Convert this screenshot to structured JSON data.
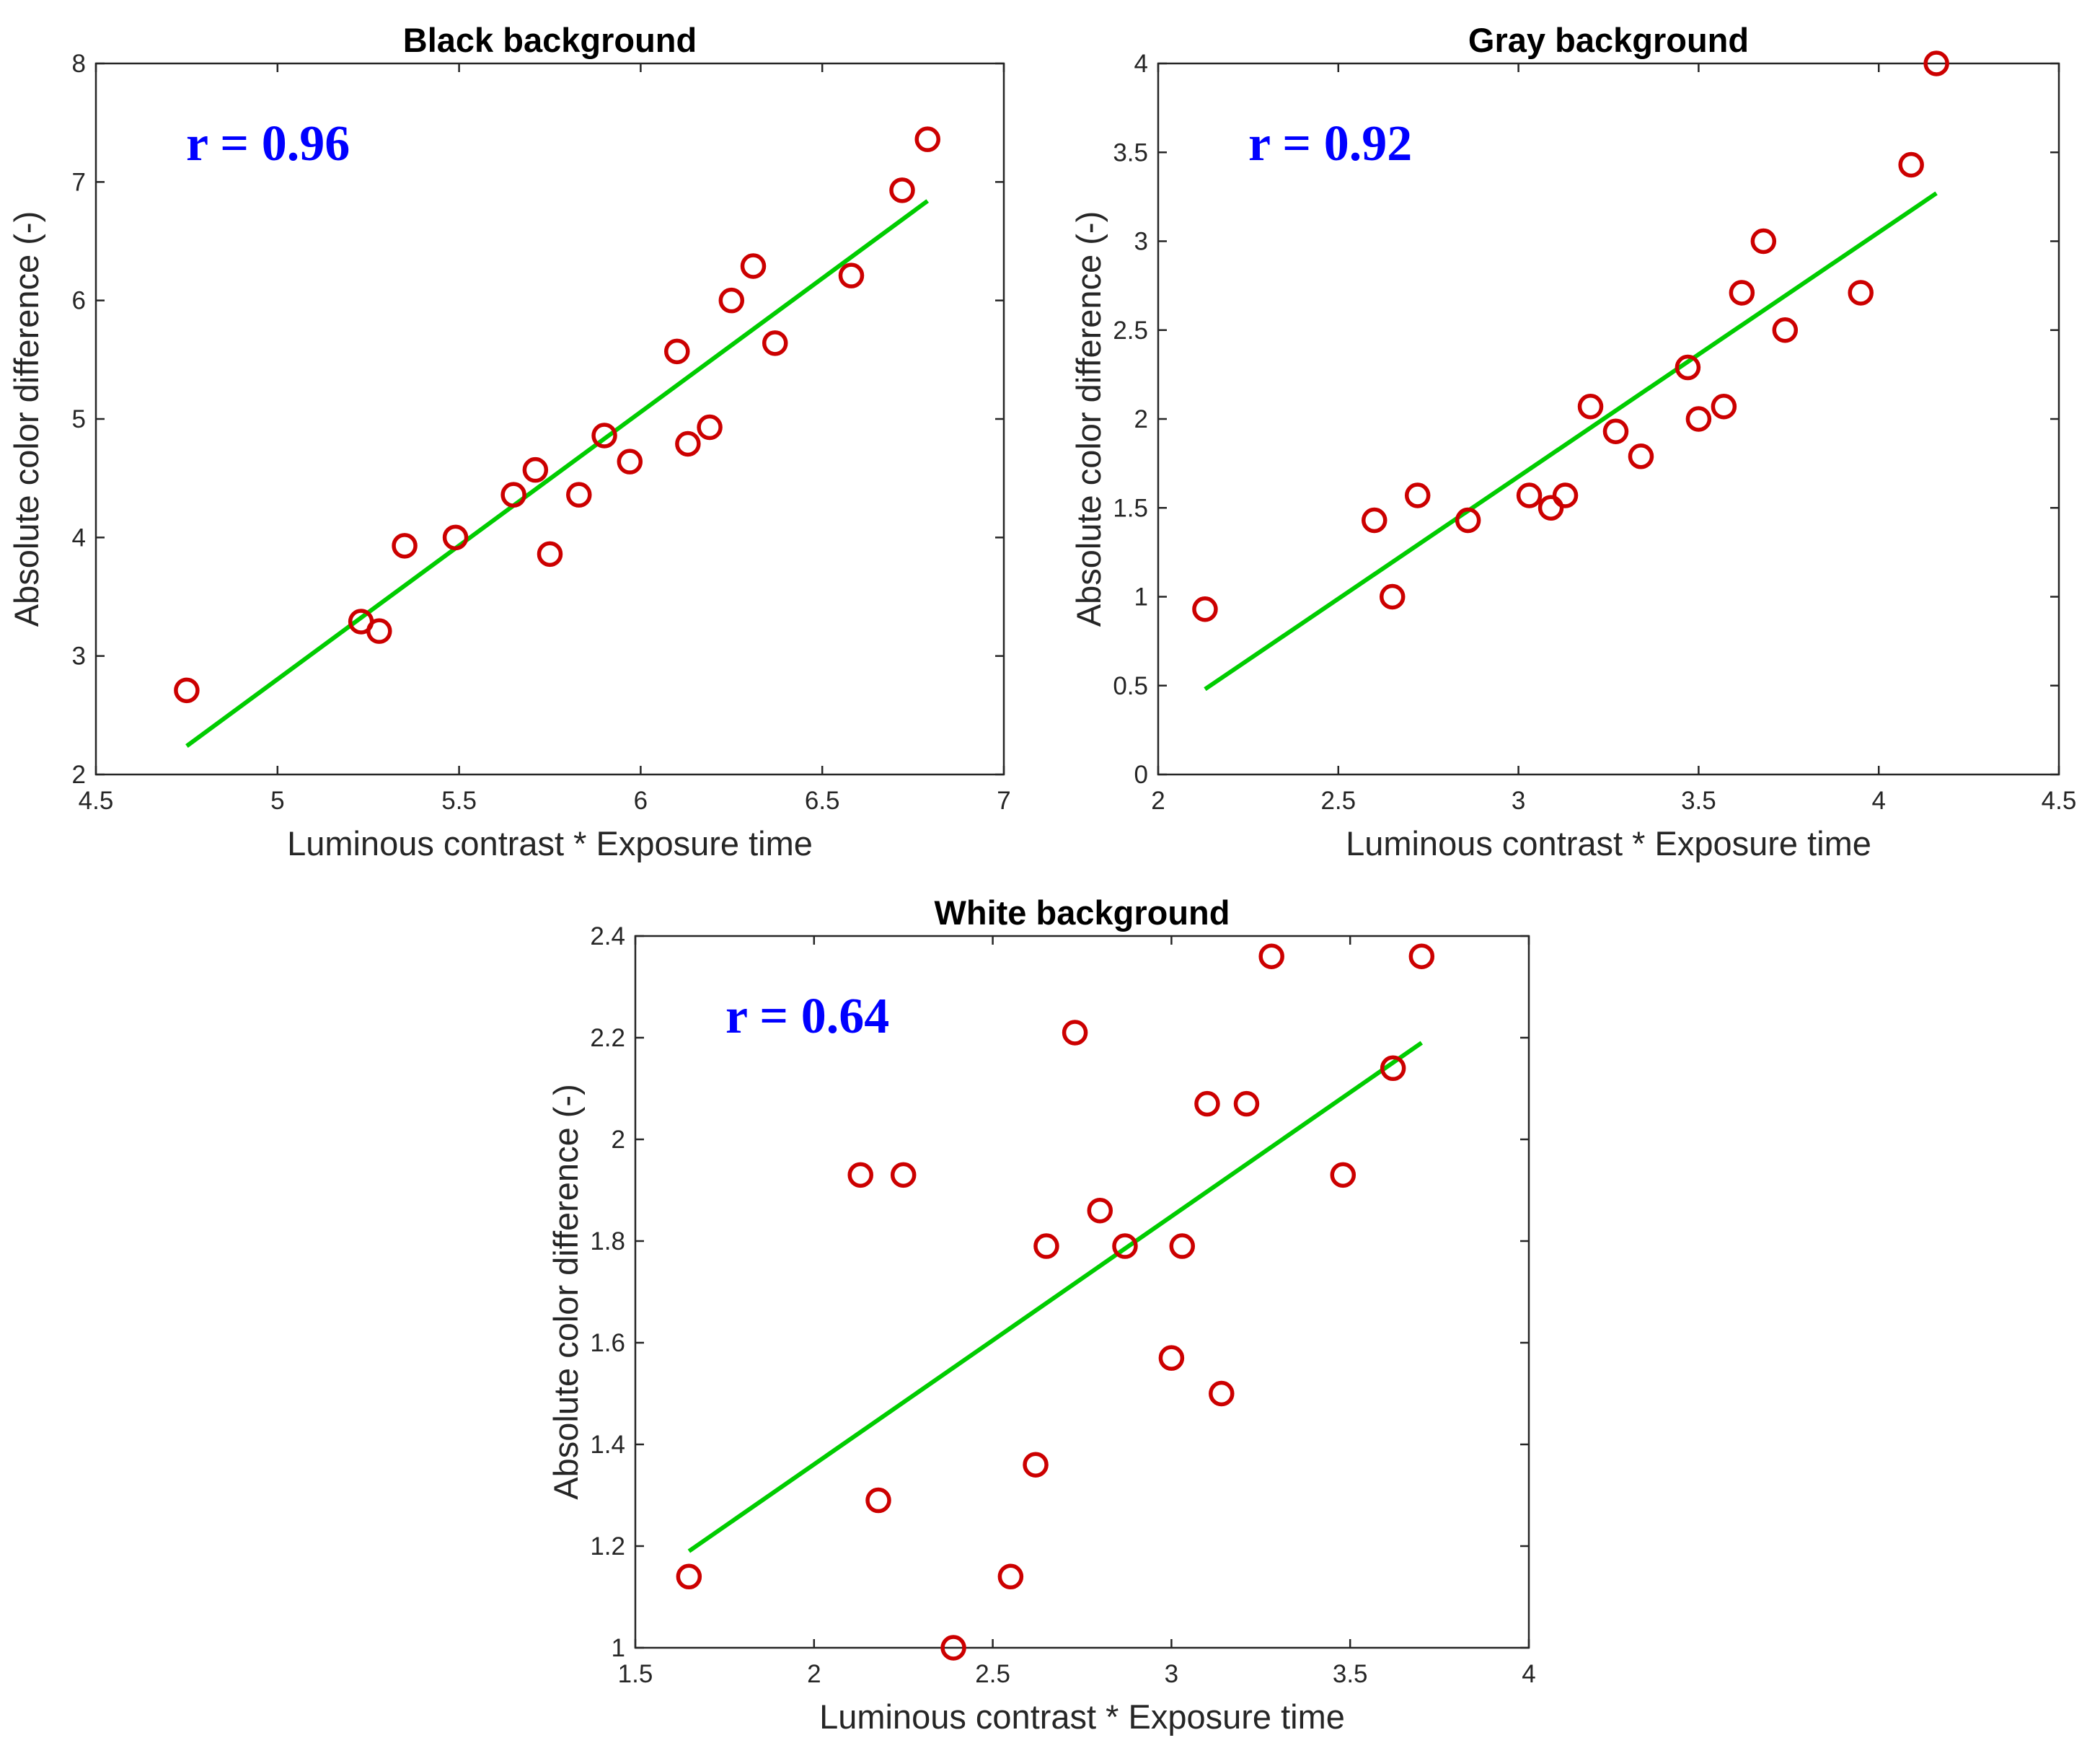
{
  "colors": {
    "marker": "#cc0000",
    "fit_line": "#00cc00",
    "r_text": "#0000ff",
    "axes": "#262626"
  },
  "chart_data": [
    {
      "id": "black",
      "type": "scatter",
      "title": "Black background",
      "xlabel": "Luminous contrast * Exposure time",
      "ylabel": "Absolute color difference (-)",
      "annotation": "r = 0.96",
      "xlim": [
        4.5,
        7
      ],
      "ylim": [
        2,
        8
      ],
      "xticks": [
        4.5,
        5,
        5.5,
        6,
        6.5,
        7
      ],
      "xtick_labels": [
        "4.5",
        "5",
        "5.5",
        "6",
        "6.5",
        "7"
      ],
      "yticks": [
        2,
        3,
        4,
        5,
        6,
        7,
        8
      ],
      "ytick_labels": [
        "2",
        "3",
        "4",
        "5",
        "6",
        "7",
        "8"
      ],
      "points": [
        [
          4.75,
          2.71
        ],
        [
          5.23,
          3.29
        ],
        [
          5.28,
          3.21
        ],
        [
          5.35,
          3.93
        ],
        [
          5.49,
          4.0
        ],
        [
          5.65,
          4.36
        ],
        [
          5.71,
          4.57
        ],
        [
          5.75,
          3.86
        ],
        [
          5.83,
          4.36
        ],
        [
          5.9,
          4.86
        ],
        [
          5.97,
          4.64
        ],
        [
          6.1,
          5.57
        ],
        [
          6.13,
          4.79
        ],
        [
          6.19,
          4.93
        ],
        [
          6.25,
          6.0
        ],
        [
          6.31,
          6.29
        ],
        [
          6.37,
          5.64
        ],
        [
          6.58,
          6.21
        ],
        [
          6.72,
          6.93
        ],
        [
          6.79,
          7.36
        ]
      ],
      "fit": [
        [
          4.75,
          2.24
        ],
        [
          6.79,
          6.84
        ]
      ]
    },
    {
      "id": "gray",
      "type": "scatter",
      "title": "Gray background",
      "xlabel": "Luminous contrast * Exposure time",
      "ylabel": "Absolute color difference (-)",
      "annotation": "r = 0.92",
      "xlim": [
        2,
        4.5
      ],
      "ylim": [
        0,
        4
      ],
      "xticks": [
        2,
        2.5,
        3,
        3.5,
        4,
        4.5
      ],
      "xtick_labels": [
        "2",
        "2.5",
        "3",
        "3.5",
        "4",
        "4.5"
      ],
      "yticks": [
        0,
        0.5,
        1,
        1.5,
        2,
        2.5,
        3,
        3.5,
        4
      ],
      "ytick_labels": [
        "0",
        "0.5",
        "1",
        "1.5",
        "2",
        "2.5",
        "3",
        "3.5",
        "4"
      ],
      "points": [
        [
          2.13,
          0.93
        ],
        [
          2.6,
          1.43
        ],
        [
          2.65,
          1.0
        ],
        [
          2.72,
          1.57
        ],
        [
          2.86,
          1.43
        ],
        [
          3.03,
          1.57
        ],
        [
          3.09,
          1.5
        ],
        [
          3.13,
          1.57
        ],
        [
          3.2,
          2.07
        ],
        [
          3.27,
          1.93
        ],
        [
          3.34,
          1.79
        ],
        [
          3.47,
          2.29
        ],
        [
          3.5,
          2.0
        ],
        [
          3.57,
          2.07
        ],
        [
          3.62,
          2.71
        ],
        [
          3.68,
          3.0
        ],
        [
          3.74,
          2.5
        ],
        [
          3.95,
          2.71
        ],
        [
          4.09,
          3.43
        ],
        [
          4.16,
          4.0
        ]
      ],
      "fit": [
        [
          2.13,
          0.48
        ],
        [
          4.16,
          3.27
        ]
      ]
    },
    {
      "id": "white",
      "type": "scatter",
      "title": "White background",
      "xlabel": "Luminous contrast * Exposure time",
      "ylabel": "Absolute color difference (-)",
      "annotation": "r = 0.64",
      "xlim": [
        1.5,
        4
      ],
      "ylim": [
        1,
        2.4
      ],
      "xticks": [
        1.5,
        2,
        2.5,
        3,
        3.5,
        4
      ],
      "xtick_labels": [
        "1.5",
        "2",
        "2.5",
        "3",
        "3.5",
        "4"
      ],
      "yticks": [
        1,
        1.2,
        1.4,
        1.6,
        1.8,
        2,
        2.2,
        2.4
      ],
      "ytick_labels": [
        "1",
        "1.2",
        "1.4",
        "1.6",
        "1.8",
        "2",
        "2.2",
        "2.4"
      ],
      "points": [
        [
          1.65,
          1.14
        ],
        [
          2.13,
          1.93
        ],
        [
          2.18,
          1.29
        ],
        [
          2.25,
          1.93
        ],
        [
          2.39,
          1.0
        ],
        [
          2.55,
          1.14
        ],
        [
          2.62,
          1.36
        ],
        [
          2.65,
          1.79
        ],
        [
          2.73,
          2.21
        ],
        [
          2.8,
          1.86
        ],
        [
          2.87,
          1.79
        ],
        [
          3.0,
          1.57
        ],
        [
          3.03,
          1.79
        ],
        [
          3.1,
          2.07
        ],
        [
          3.14,
          1.5
        ],
        [
          3.21,
          2.07
        ],
        [
          3.28,
          2.36
        ],
        [
          3.48,
          1.93
        ],
        [
          3.62,
          2.14
        ],
        [
          3.7,
          2.36
        ]
      ],
      "fit": [
        [
          1.65,
          1.19
        ],
        [
          3.7,
          2.19
        ]
      ]
    }
  ]
}
